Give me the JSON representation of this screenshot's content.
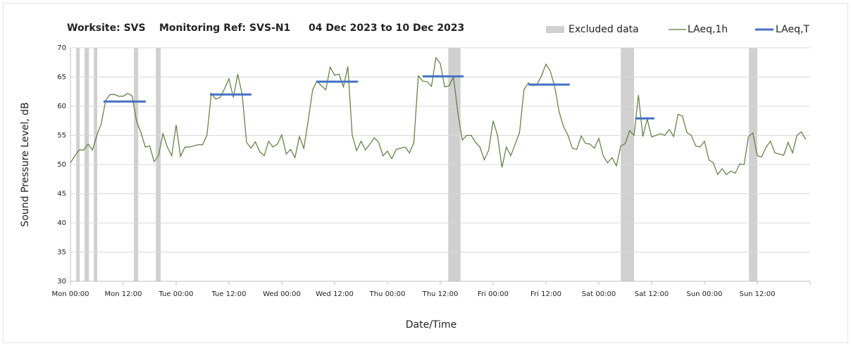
{
  "chart_data": {
    "type": "line",
    "title": [
      "Worksite: SVS",
      "Monitoring Ref: SVS-N1",
      "04 Dec 2023 to 10 Dec 2023"
    ],
    "x_label": "Date/Time",
    "y_label": "Sound Pressure Level, dB",
    "xlim": [
      0,
      168
    ],
    "xticks": [
      {
        "value": 0,
        "label": "Mon 00:00"
      },
      {
        "value": 12,
        "label": "Mon 12:00"
      },
      {
        "value": 24,
        "label": "Tue 00:00"
      },
      {
        "value": 36,
        "label": "Tue 12:00"
      },
      {
        "value": 48,
        "label": "Wed 00:00"
      },
      {
        "value": 60,
        "label": "Wed 12:00"
      },
      {
        "value": 72,
        "label": "Thu 00:00"
      },
      {
        "value": 84,
        "label": "Thu 12:00"
      },
      {
        "value": 96,
        "label": "Fri 00:00"
      },
      {
        "value": 108,
        "label": "Fri 12:00"
      },
      {
        "value": 120,
        "label": "Sat 00:00"
      },
      {
        "value": 132,
        "label": "Sat 12:00"
      },
      {
        "value": 144,
        "label": "Sun 00:00"
      },
      {
        "value": 156,
        "label": "Sun 12:00"
      }
    ],
    "ylim": [
      30,
      70
    ],
    "yticks": [
      30,
      35,
      40,
      45,
      50,
      55,
      60,
      65,
      70
    ],
    "grid": true,
    "legend": "top-right",
    "excluded": {
      "name": "Excluded data",
      "color": "#d0d0d0",
      "ranges": [
        {
          "start": 1.3,
          "end": 2.1
        },
        {
          "start": 3.2,
          "end": 4.2
        },
        {
          "start": 5.3,
          "end": 6.1
        },
        {
          "start": 14.4,
          "end": 15.4
        },
        {
          "start": 19.4,
          "end": 20.5
        },
        {
          "start": 85.8,
          "end": 88.6
        },
        {
          "start": 125,
          "end": 128
        },
        {
          "start": 154.1,
          "end": 156
        }
      ]
    },
    "series": [
      {
        "name": "LAeq,1h",
        "color": "#5b7a3c",
        "x": [
          0,
          1,
          2,
          3,
          4,
          5,
          6,
          7,
          8,
          9,
          10,
          11,
          12,
          13,
          14,
          15,
          16,
          17,
          18,
          19,
          20,
          21,
          22,
          23,
          24,
          25,
          26,
          27,
          28,
          29,
          30,
          31,
          32,
          33,
          34,
          35,
          36,
          37,
          38,
          39,
          40,
          41,
          42,
          43,
          44,
          45,
          46,
          47,
          48,
          49,
          50,
          51,
          52,
          53,
          54,
          55,
          56,
          57,
          58,
          59,
          60,
          61,
          62,
          63,
          64,
          65,
          66,
          67,
          68,
          69,
          70,
          71,
          72,
          73,
          74,
          75,
          76,
          77,
          78,
          79,
          80,
          81,
          82,
          83,
          84,
          85,
          86,
          87,
          88,
          89,
          90,
          91,
          92,
          93,
          94,
          95,
          96,
          97,
          98,
          99,
          100,
          101,
          102,
          103,
          104,
          105,
          106,
          107,
          108,
          109,
          110,
          111,
          112,
          113,
          114,
          115,
          116,
          117,
          118,
          119,
          120,
          121,
          122,
          123,
          124,
          125,
          126,
          127,
          128,
          129,
          130,
          131,
          132,
          133,
          134,
          135,
          136,
          137,
          138,
          139,
          140,
          141,
          142,
          143,
          144,
          145,
          146,
          147,
          148,
          149,
          150,
          151,
          152,
          153,
          154,
          155,
          156,
          157,
          158,
          159,
          160,
          161,
          162,
          163,
          164,
          165,
          166,
          167
        ],
        "values": [
          50.3,
          51.5,
          52.5,
          52.5,
          53.5,
          52.5,
          55,
          57,
          61,
          62,
          62,
          61.7,
          61.7,
          62.2,
          61.8,
          57.5,
          55.5,
          53,
          53.2,
          50.5,
          51.5,
          55.3,
          53,
          51.5,
          56.8,
          51.4,
          53,
          53,
          53.2,
          53.4,
          53.4,
          55,
          62.2,
          61.2,
          61.5,
          63,
          64.7,
          61.5,
          65.5,
          62,
          53.8,
          52.8,
          53.9,
          52.2,
          51.5,
          54,
          53,
          53.5,
          55.1,
          51.8,
          52.6,
          51.2,
          54.8,
          52.8,
          57.5,
          62.8,
          64.3,
          63.5,
          62.8,
          66.7,
          65.3,
          65.5,
          63.3,
          66.8,
          55,
          52.4,
          54,
          52.5,
          53.5,
          54.6,
          53.8,
          51.5,
          52.3,
          51,
          52.6,
          52.8,
          53,
          52,
          53.8,
          65.2,
          64.3,
          64.2,
          63.4,
          68.3,
          67.3,
          63.3,
          63.5,
          65,
          58.8,
          54.2,
          55,
          55,
          53.8,
          53,
          50.8,
          52.5,
          57.5,
          55,
          49.5,
          53,
          51.5,
          53.5,
          55.5,
          62.8,
          64,
          63.5,
          63.8,
          65.2,
          67.2,
          66,
          63.3,
          59,
          56.5,
          55,
          52.8,
          52.6,
          54.9,
          53.6,
          53.5,
          52.8,
          54.5,
          51.5,
          50.3,
          51.2,
          49.8,
          53.2,
          53.6,
          55.8,
          55,
          61.9,
          54.8,
          57.8,
          54.7,
          55,
          55.3,
          55,
          56,
          54.8,
          58.6,
          58.3,
          55.5,
          55,
          53.2,
          53,
          54,
          50.8,
          50.3,
          48.3,
          49.3,
          48.3,
          48.9,
          48.5,
          50.1,
          50,
          54.8,
          55.4,
          51.5,
          51.3,
          53,
          54,
          52,
          51.8,
          51.6,
          53.8,
          52,
          55,
          55.6,
          54.3
        ]
      }
    ],
    "periods": {
      "name": "LAeq,T",
      "color": "#4472c4",
      "segments": [
        {
          "start": 7.5,
          "end": 17.1,
          "value": 60.8
        },
        {
          "start": 31.7,
          "end": 41.1,
          "value": 62
        },
        {
          "start": 55.8,
          "end": 65.3,
          "value": 64.2
        },
        {
          "start": 80,
          "end": 89.3,
          "value": 65.1
        },
        {
          "start": 104,
          "end": 113.4,
          "value": 63.7
        },
        {
          "start": 128.3,
          "end": 132.6,
          "value": 57.9
        }
      ]
    }
  }
}
